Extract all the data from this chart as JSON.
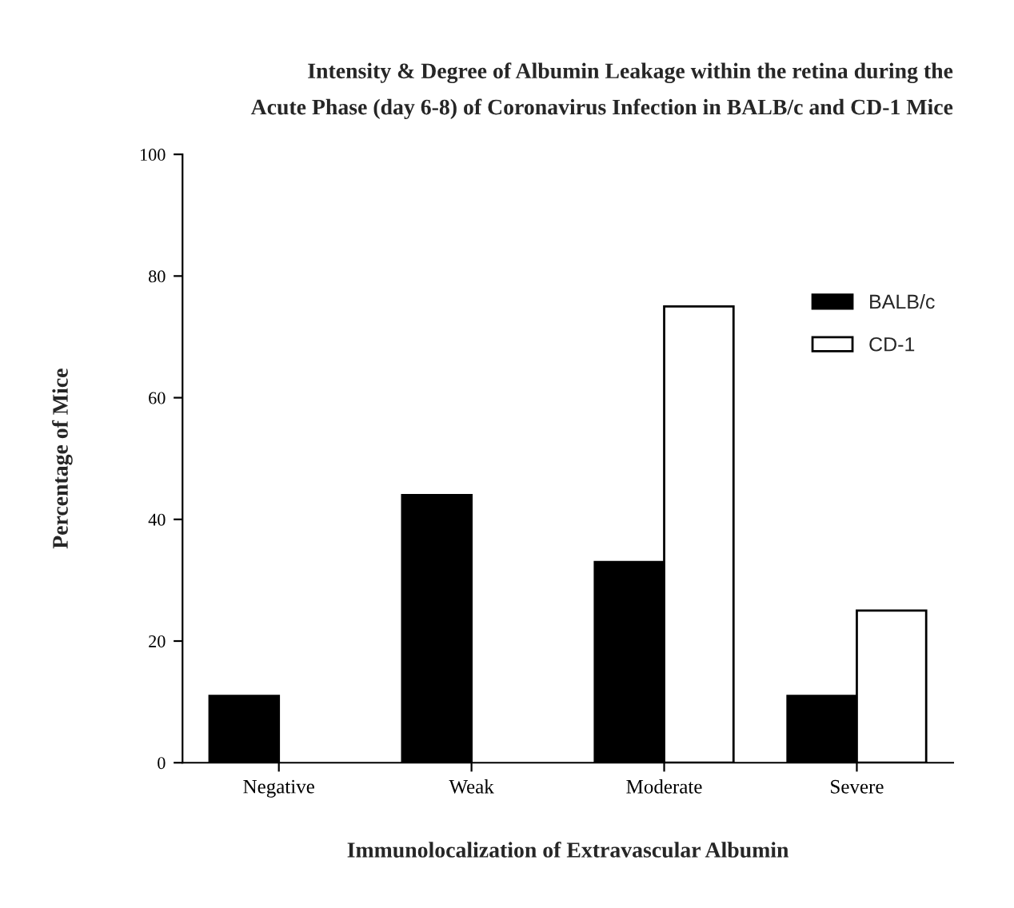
{
  "chart_data": {
    "type": "bar",
    "title": "Intensity & Degree of Albumin Leakage within the retina during the\nAcute Phase (day 6-8) of Coronavirus Infection in BALB/c and CD-1 Mice",
    "xlabel": "Immunolocalization of Extravascular Albumin",
    "ylabel": "Percentage of Mice",
    "categories": [
      "Negative",
      "Weak",
      "Moderate",
      "Severe"
    ],
    "series": [
      {
        "name": "BALB/c",
        "color": "#000000",
        "values": [
          11,
          44,
          33,
          11
        ]
      },
      {
        "name": "CD-1",
        "color": "#ffffff",
        "values": [
          null,
          null,
          75,
          25
        ]
      }
    ],
    "ylim": [
      0,
      100
    ],
    "yticks": [
      0,
      20,
      40,
      60,
      80,
      100
    ],
    "grid": false,
    "legend": "right"
  }
}
